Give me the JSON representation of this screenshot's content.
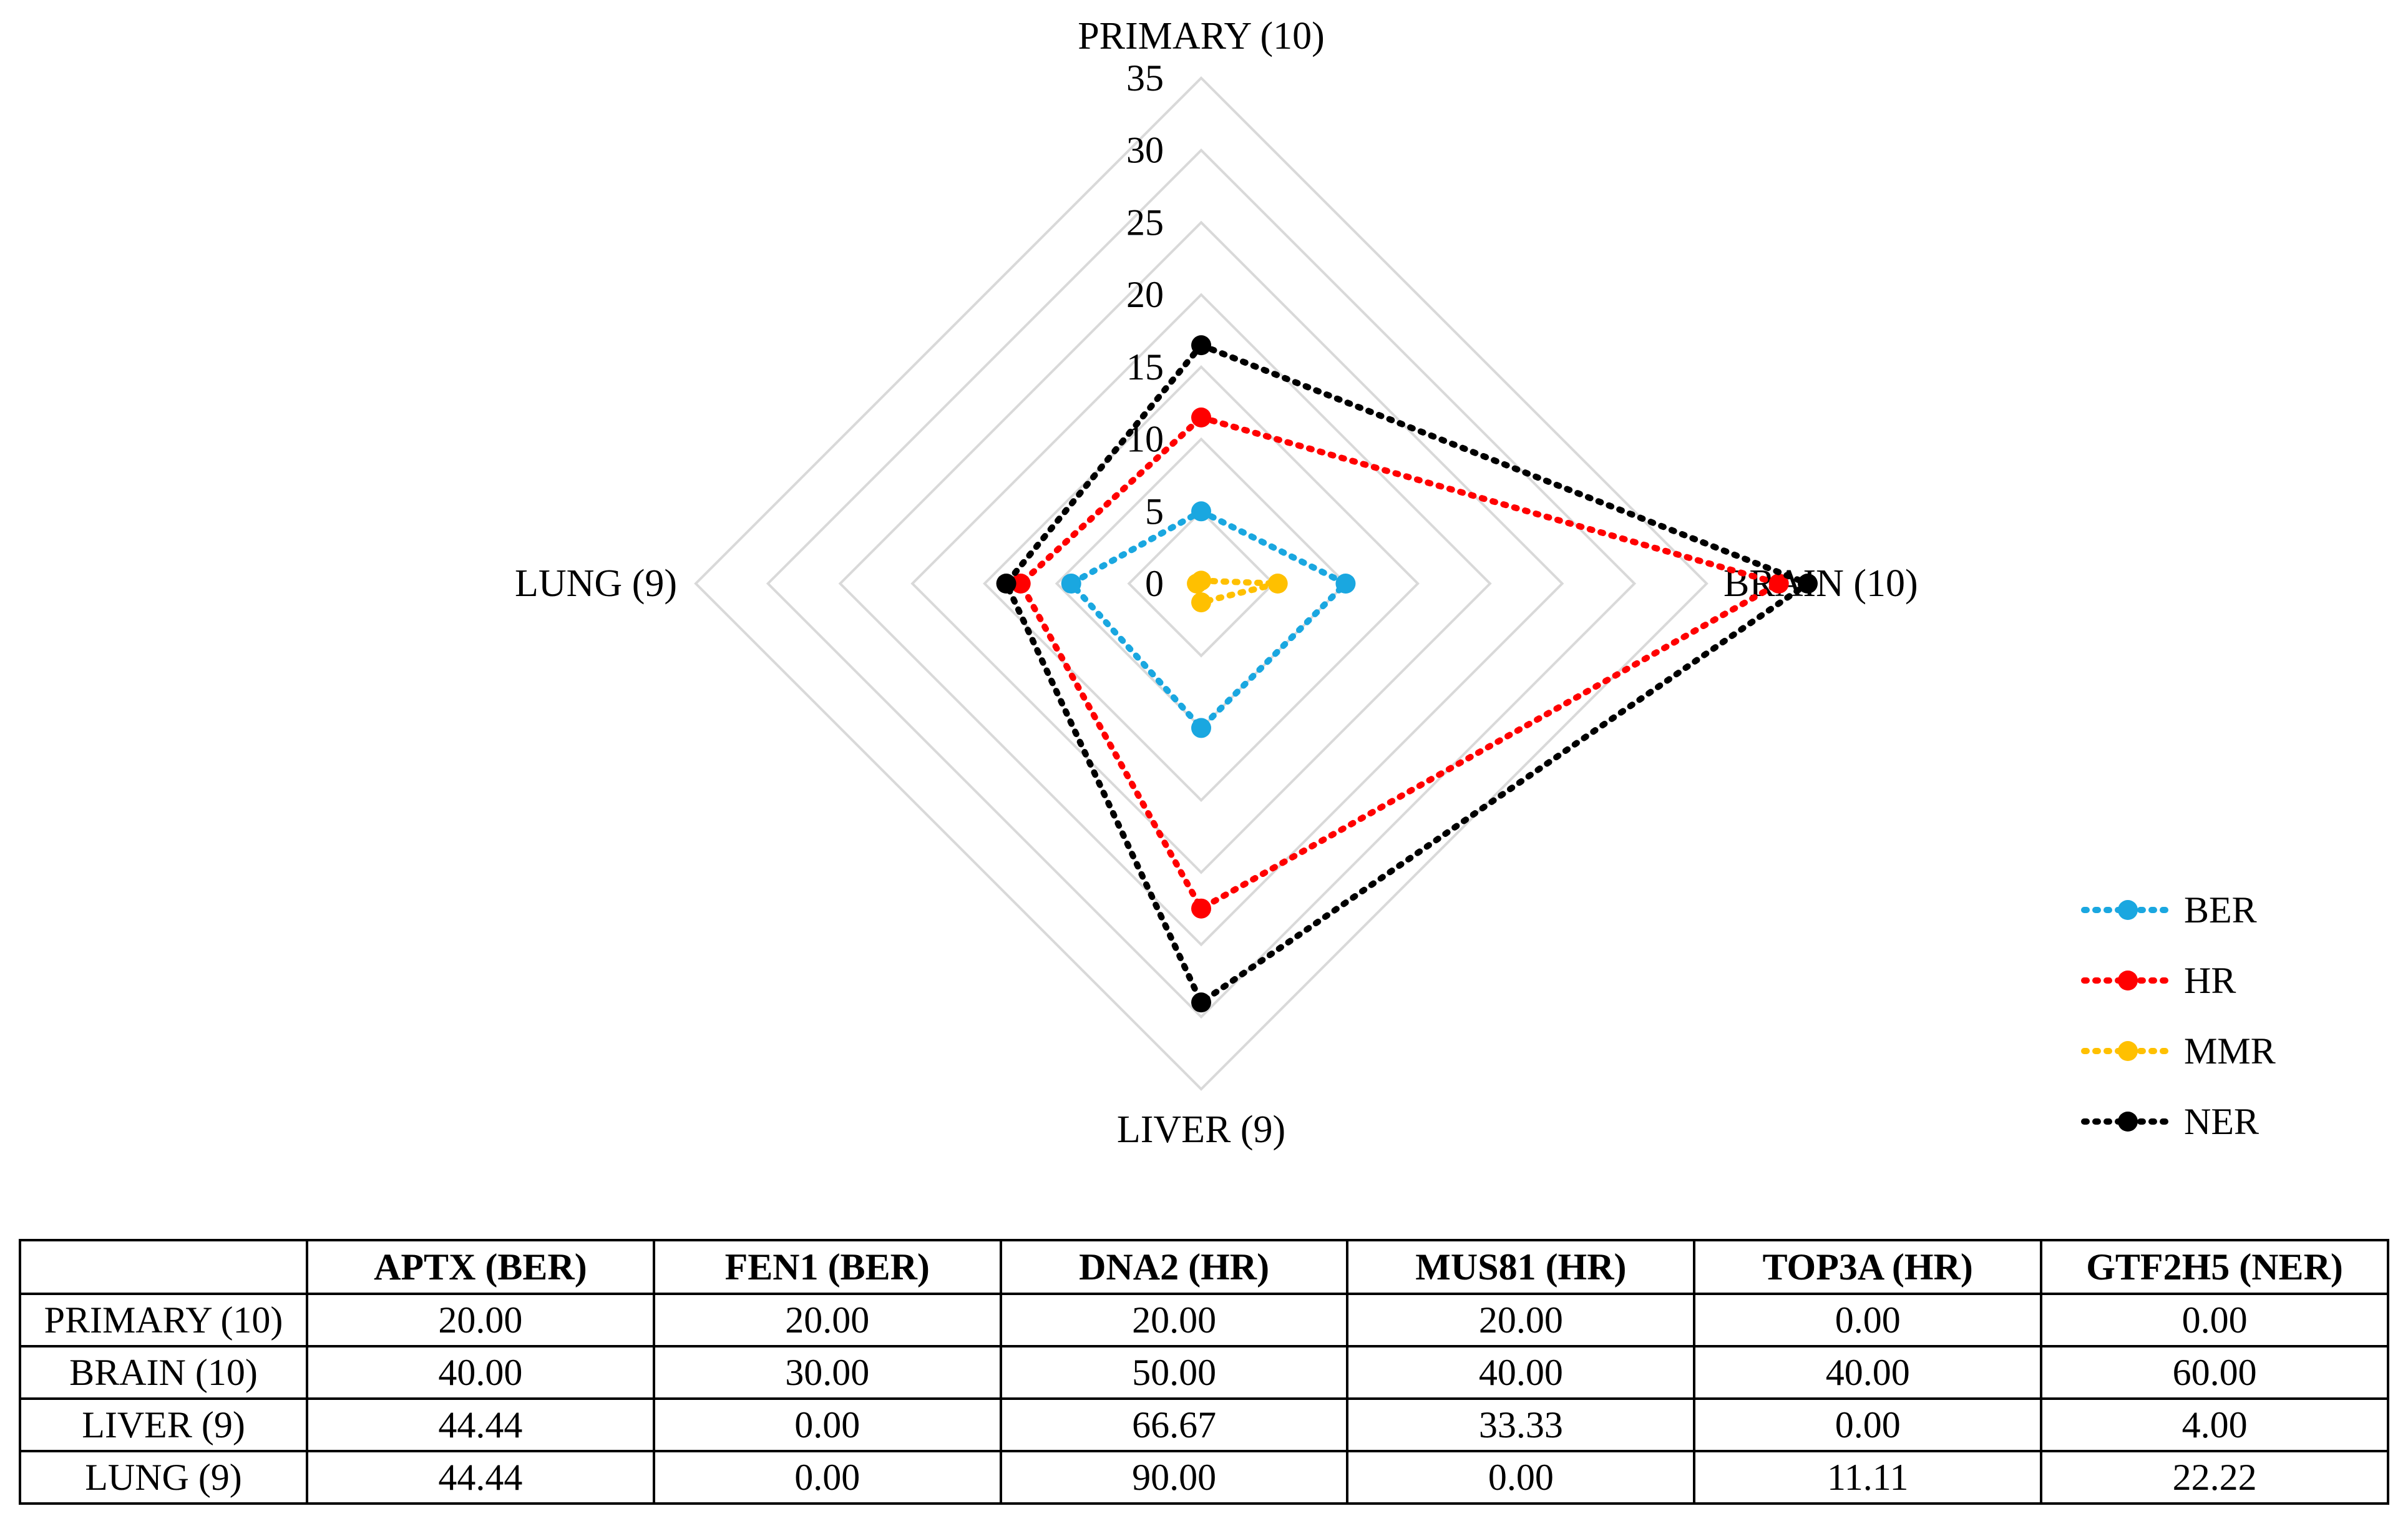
{
  "chart_data": {
    "type": "radar",
    "axes": [
      "PRIMARY (10)",
      "BRAIN (10)",
      "LIVER (9)",
      "LUNG (9)"
    ],
    "ticks": [
      "0",
      "5",
      "10",
      "15",
      "20",
      "25",
      "30",
      "35"
    ],
    "rmax": 35,
    "series": [
      {
        "name": "BER",
        "color": "#1aa7e0",
        "values": [
          5,
          10,
          10,
          9
        ]
      },
      {
        "name": "HR",
        "color": "#ff0000",
        "values": [
          11.5,
          40,
          22.5,
          12.5
        ]
      },
      {
        "name": "MMR",
        "color": "#ffc000",
        "values": [
          0.2,
          5.3,
          1.3,
          0.3
        ]
      },
      {
        "name": "NER",
        "color": "#000000",
        "values": [
          16.5,
          42,
          29,
          13.5
        ]
      }
    ],
    "legend_position": "right"
  },
  "table": {
    "headers": [
      "",
      "APTX (BER)",
      "FEN1 (BER)",
      "DNA2 (HR)",
      "MUS81 (HR)",
      "TOP3A (HR)",
      "GTF2H5 (NER)"
    ],
    "rows": [
      [
        "PRIMARY (10)",
        "20.00",
        "20.00",
        "20.00",
        "20.00",
        "0.00",
        "0.00"
      ],
      [
        "BRAIN (10)",
        "40.00",
        "30.00",
        "50.00",
        "40.00",
        "40.00",
        "60.00"
      ],
      [
        "LIVER (9)",
        "44.44",
        "0.00",
        "66.67",
        "33.33",
        "0.00",
        "4.00"
      ],
      [
        "LUNG (9)",
        "44.44",
        "0.00",
        "90.00",
        "0.00",
        "11.11",
        "22.22"
      ]
    ]
  }
}
